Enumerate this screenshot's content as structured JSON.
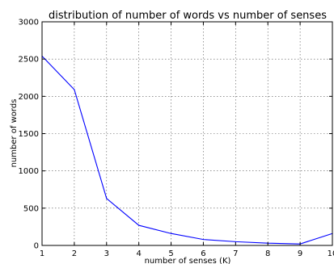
{
  "chart_data": {
    "type": "line",
    "title": "distribution of number of words vs number of senses",
    "xlabel": "number of senses (K)",
    "ylabel": "number of words",
    "xlim": [
      1,
      10
    ],
    "ylim": [
      0,
      3000
    ],
    "xticks": [
      1,
      2,
      3,
      4,
      5,
      6,
      7,
      8,
      9,
      10
    ],
    "yticks": [
      0,
      500,
      1000,
      1500,
      2000,
      2500,
      3000
    ],
    "grid": true,
    "series": [
      {
        "color": "#0000ff",
        "x": [
          1,
          2,
          3,
          4,
          5,
          6,
          7,
          8,
          9,
          10
        ],
        "y": [
          2540,
          2090,
          630,
          270,
          160,
          80,
          50,
          30,
          20,
          160
        ]
      }
    ]
  }
}
